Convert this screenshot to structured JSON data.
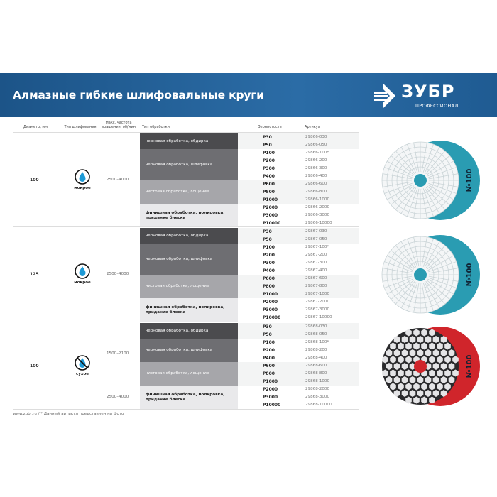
{
  "header": {
    "title": "Алмазные гибкие шлифовальные круги",
    "brand": "ЗУБР",
    "brand_sub": "ПРОФЕССИОНАЛ"
  },
  "columns": [
    "Диаметр, мм",
    "Тип шлифования",
    "Макс. частота вращения, об/мин",
    "Тип обработки",
    "Зернистость",
    "Артикул"
  ],
  "colors": {
    "banner": "#2b6ca6",
    "teal": "#2a9cb2",
    "red": "#d0252b",
    "band_dark": "#4b4b4e",
    "band_mid": "#6e6e72",
    "band_light": "#a6a6aa",
    "band_pale": "#e9e9eb"
  },
  "groups": [
    {
      "diameter": "100",
      "type": "мокрое",
      "icon": "water-drop-icon",
      "speeds": [
        {
          "label": "2500–4000",
          "rows": 12
        }
      ],
      "disc_label": "№100",
      "disc_color": "teal",
      "categories": [
        {
          "label": "черновая обработка, обдирка",
          "rows": [
            {
              "grit": "P30",
              "article": "29866-030"
            },
            {
              "grit": "P50",
              "article": "29866-050"
            }
          ]
        },
        {
          "label": "черновая обработка, шлифовка",
          "rows": [
            {
              "grit": "P100",
              "article": "29866-100*"
            },
            {
              "grit": "P200",
              "article": "29866-200"
            },
            {
              "grit": "P300",
              "article": "29866-300"
            },
            {
              "grit": "P400",
              "article": "29866-400"
            }
          ]
        },
        {
          "label": "чистовая обработка, лощение",
          "rows": [
            {
              "grit": "P600",
              "article": "29866-600"
            },
            {
              "grit": "P800",
              "article": "29866-800"
            },
            {
              "grit": "P1000",
              "article": "29866-1000"
            }
          ]
        },
        {
          "label": "финишная обработка, полировка, придание блеска",
          "rows": [
            {
              "grit": "P2000",
              "article": "29866-2000"
            },
            {
              "grit": "P3000",
              "article": "29866-3000"
            },
            {
              "grit": "P10000",
              "article": "29866-10000"
            }
          ]
        }
      ]
    },
    {
      "diameter": "125",
      "type": "мокрое",
      "icon": "water-drop-icon",
      "speeds": [
        {
          "label": "2500–4000",
          "rows": 12
        }
      ],
      "disc_label": "№100",
      "disc_color": "teal",
      "categories": [
        {
          "label": "черновая обработка, обдирка",
          "rows": [
            {
              "grit": "P30",
              "article": "29867-030"
            },
            {
              "grit": "P50",
              "article": "29867-050"
            }
          ]
        },
        {
          "label": "черновая обработка, шлифовка",
          "rows": [
            {
              "grit": "P100",
              "article": "29867-100*"
            },
            {
              "grit": "P200",
              "article": "29867-200"
            },
            {
              "grit": "P300",
              "article": "29867-300"
            },
            {
              "grit": "P400",
              "article": "29867-400"
            }
          ]
        },
        {
          "label": "чистовая обработка, лощение",
          "rows": [
            {
              "grit": "P600",
              "article": "29867-600"
            },
            {
              "grit": "P800",
              "article": "29867-800"
            },
            {
              "grit": "P1000",
              "article": "29867-1000"
            }
          ]
        },
        {
          "label": "финишная обработка, полировка, придание блеска",
          "rows": [
            {
              "grit": "P2000",
              "article": "29867-2000"
            },
            {
              "grit": "P3000",
              "article": "29867-3000"
            },
            {
              "grit": "P10000",
              "article": "29867-10000"
            }
          ]
        }
      ]
    },
    {
      "diameter": "100",
      "type": "сухое",
      "icon": "no-water-icon",
      "speeds": [
        {
          "label": "1500–2100",
          "rows": 8
        },
        {
          "label": "2500–4000",
          "rows": 3
        }
      ],
      "disc_label": "№100",
      "disc_color": "red",
      "categories": [
        {
          "label": "черновая обработка, обдирка",
          "rows": [
            {
              "grit": "P30",
              "article": "29868-030"
            },
            {
              "grit": "P50",
              "article": "29868-050"
            }
          ]
        },
        {
          "label": "черновая обработка, шлифовка",
          "rows": [
            {
              "grit": "P100",
              "article": "29868-100*"
            },
            {
              "grit": "P200",
              "article": "29868-200"
            },
            {
              "grit": "P400",
              "article": "29868-400"
            }
          ]
        },
        {
          "label": "чистовая обработка, лощение",
          "rows": [
            {
              "grit": "P600",
              "article": "29868-600"
            },
            {
              "grit": "P800",
              "article": "29868-800"
            },
            {
              "grit": "P1000",
              "article": "29868-1000"
            }
          ]
        },
        {
          "label": "финишная обработка, полировка, придание блеска",
          "rows": [
            {
              "grit": "P2000",
              "article": "29868-2000"
            },
            {
              "grit": "P3000",
              "article": "29868-3000"
            },
            {
              "grit": "P10000",
              "article": "29868-10000"
            }
          ]
        }
      ]
    }
  ],
  "footer": {
    "site": "www.zubr.ru",
    "note": "/ * Данный артикул представлен на фото"
  }
}
